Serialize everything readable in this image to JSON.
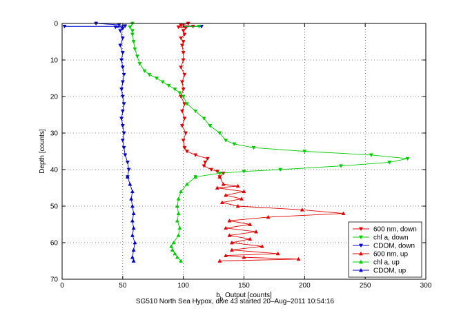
{
  "chart_data": {
    "type": "line",
    "xlabel": "b_b Output [counts]",
    "ylabel": "Depth [counts]",
    "xlim": [
      0,
      300
    ],
    "ylim": [
      0,
      70
    ],
    "y_reversed": true,
    "grid": true,
    "grid_style": "dotted",
    "legend_position": "bottom-right",
    "xticks": [
      0,
      50,
      100,
      150,
      200,
      250,
      300
    ],
    "yticks": [
      0,
      10,
      20,
      30,
      40,
      50,
      60,
      70
    ],
    "series": [
      {
        "name": "600 nm, down",
        "color": "#e00000",
        "marker": "triangle-down",
        "points": [
          [
            104,
            0
          ],
          [
            98,
            0.5
          ],
          [
            108,
            0.8
          ],
          [
            96,
            1
          ],
          [
            102,
            1.2
          ],
          [
            100,
            2
          ],
          [
            101,
            3
          ],
          [
            98,
            4
          ],
          [
            100,
            5
          ],
          [
            99,
            6
          ],
          [
            100,
            8
          ],
          [
            100,
            10
          ],
          [
            98,
            12
          ],
          [
            101,
            14
          ],
          [
            99,
            16
          ],
          [
            100,
            18
          ],
          [
            98,
            20
          ],
          [
            101,
            22
          ],
          [
            99,
            24
          ],
          [
            101,
            26
          ],
          [
            99,
            28
          ],
          [
            102,
            30
          ],
          [
            100,
            32
          ],
          [
            101,
            34
          ],
          [
            103,
            35
          ],
          [
            110,
            36
          ],
          [
            120,
            37
          ],
          [
            118,
            38
          ],
          [
            117,
            39
          ],
          [
            123,
            40
          ],
          [
            128,
            40.5
          ],
          [
            133,
            41
          ],
          [
            130,
            42
          ]
        ]
      },
      {
        "name": "chl a, down",
        "color": "#00cc00",
        "marker": "triangle-down",
        "points": [
          [
            58,
            0
          ],
          [
            56,
            1
          ],
          [
            58,
            2
          ],
          [
            58,
            3
          ],
          [
            59,
            5
          ],
          [
            60,
            7
          ],
          [
            62,
            9
          ],
          [
            64,
            11
          ],
          [
            68,
            13
          ],
          [
            72,
            14
          ],
          [
            78,
            15
          ],
          [
            83,
            16
          ],
          [
            88,
            17
          ],
          [
            93,
            18
          ],
          [
            97,
            19
          ],
          [
            100,
            20
          ],
          [
            103,
            22
          ],
          [
            110,
            24
          ],
          [
            117,
            26
          ],
          [
            122,
            28
          ],
          [
            130,
            30
          ],
          [
            135,
            32
          ],
          [
            142,
            33
          ],
          [
            158,
            34
          ],
          [
            200,
            35
          ],
          [
            255,
            36
          ],
          [
            285,
            37
          ],
          [
            270,
            38
          ],
          [
            230,
            39
          ],
          [
            180,
            40
          ],
          [
            150,
            40.5
          ],
          [
            130,
            41
          ],
          [
            110,
            42
          ]
        ]
      },
      {
        "name": "CDOM, down",
        "color": "#0000cc",
        "marker": "triangle-down",
        "points": [
          [
            28,
            0
          ],
          [
            47,
            0.4
          ],
          [
            52,
            0.7
          ],
          [
            44,
            1
          ],
          [
            50,
            1.4
          ],
          [
            48,
            2
          ],
          [
            50,
            4
          ],
          [
            48,
            6
          ],
          [
            50,
            8
          ],
          [
            49,
            10
          ],
          [
            50,
            12
          ],
          [
            51,
            14
          ],
          [
            50,
            16
          ],
          [
            49,
            18
          ],
          [
            50,
            20
          ],
          [
            51,
            22
          ],
          [
            50,
            24
          ],
          [
            49,
            26
          ],
          [
            50,
            28
          ],
          [
            51,
            30
          ],
          [
            50,
            32
          ],
          [
            51,
            34
          ],
          [
            52,
            36
          ],
          [
            54,
            38
          ],
          [
            55,
            40
          ],
          [
            54,
            42
          ]
        ]
      },
      {
        "name": "600 nm, up",
        "color": "#e00000",
        "marker": "triangle-up",
        "points": [
          [
            130,
            42
          ],
          [
            133,
            44
          ],
          [
            145,
            44.5
          ],
          [
            128,
            45
          ],
          [
            150,
            46
          ],
          [
            135,
            47
          ],
          [
            148,
            48
          ],
          [
            132,
            49
          ],
          [
            145,
            50
          ],
          [
            198,
            51
          ],
          [
            232,
            52
          ],
          [
            170,
            53
          ],
          [
            138,
            54
          ],
          [
            155,
            55
          ],
          [
            135,
            56
          ],
          [
            160,
            57
          ],
          [
            138,
            58
          ],
          [
            155,
            59
          ],
          [
            140,
            60
          ],
          [
            165,
            61
          ],
          [
            140,
            62
          ],
          [
            178,
            63
          ],
          [
            135,
            63.5
          ],
          [
            150,
            64
          ],
          [
            195,
            64.5
          ],
          [
            130,
            65
          ]
        ]
      },
      {
        "name": "chl a, up",
        "color": "#00cc00",
        "marker": "triangle-up",
        "points": [
          [
            110,
            42
          ],
          [
            103,
            44
          ],
          [
            98,
            46
          ],
          [
            96,
            48
          ],
          [
            95,
            50
          ],
          [
            96,
            52
          ],
          [
            95,
            54
          ],
          [
            97,
            56
          ],
          [
            96,
            58
          ],
          [
            92,
            60
          ],
          [
            90,
            61
          ],
          [
            91,
            62
          ],
          [
            93,
            63
          ],
          [
            95,
            64
          ],
          [
            98,
            65
          ]
        ]
      },
      {
        "name": "CDOM, up",
        "color": "#0000cc",
        "marker": "triangle-up",
        "points": [
          [
            54,
            42
          ],
          [
            56,
            44
          ],
          [
            58,
            46
          ],
          [
            57,
            48
          ],
          [
            58,
            50
          ],
          [
            59,
            52
          ],
          [
            58,
            54
          ],
          [
            59,
            56
          ],
          [
            58,
            58
          ],
          [
            60,
            60
          ],
          [
            59,
            62
          ],
          [
            58,
            64
          ],
          [
            59,
            65
          ]
        ]
      }
    ],
    "outliers": [
      {
        "series": "CDOM, down",
        "color": "#0000cc",
        "points": [
          [
            2,
            0.8
          ],
          [
            115,
            0.8
          ]
        ]
      },
      {
        "series": "chl a, down",
        "color": "#00cc00",
        "points": [
          [
            113,
            0.8
          ]
        ]
      }
    ]
  },
  "caption": "SG510 North Sea Hypox, dive 43 started 20–Aug–2011 10:54:16"
}
